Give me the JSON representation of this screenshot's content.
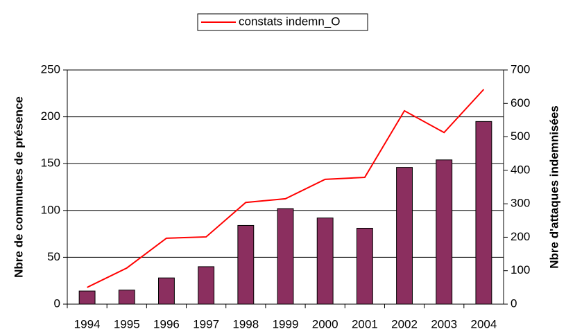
{
  "chart_data": {
    "type": "bar",
    "categories": [
      "1994",
      "1995",
      "1996",
      "1997",
      "1998",
      "1999",
      "2000",
      "2001",
      "2002",
      "2003",
      "2004"
    ],
    "series": [
      {
        "color": "#8b2f5f",
        "values": [
          14,
          15,
          28,
          40,
          84,
          102,
          92,
          81,
          146,
          154,
          195
        ]
      },
      {
        "name": "constats indemn_O",
        "color": "#ff0000",
        "type": "line",
        "axis": "y2",
        "values": [
          50,
          108,
          197,
          201,
          304,
          315,
          373,
          379,
          578,
          513,
          642
        ]
      }
    ],
    "ylabel": "Nbre de communes de présence",
    "y2label": "Nbre d'attaques indemnisées",
    "ylim": [
      0,
      250
    ],
    "yticks": [
      0,
      50,
      100,
      150,
      200,
      250
    ],
    "y2lim": [
      0,
      700
    ],
    "y2ticks": [
      0,
      100,
      200,
      300,
      400,
      500,
      600,
      700
    ],
    "grid": true,
    "legend": "top"
  }
}
